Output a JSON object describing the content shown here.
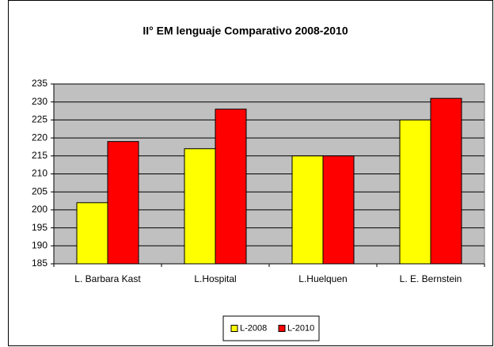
{
  "chart_data": {
    "type": "bar",
    "title": "II° EM lenguaje  Comparativo 2008-2010",
    "categories": [
      "L. Barbara Kast",
      "L.Hospital",
      "L.Huelquen",
      "L. E. Bernstein"
    ],
    "series": [
      {
        "name": "L-2008",
        "color": "#ffff00",
        "values": [
          202,
          217,
          215,
          225
        ]
      },
      {
        "name": "L-2010",
        "color": "#ff0000",
        "values": [
          219,
          228,
          215,
          231
        ]
      }
    ],
    "ylim": [
      185,
      235
    ],
    "yticks": [
      185,
      190,
      195,
      200,
      205,
      210,
      215,
      220,
      225,
      230,
      235
    ],
    "grid": true,
    "legend": "bottom"
  }
}
